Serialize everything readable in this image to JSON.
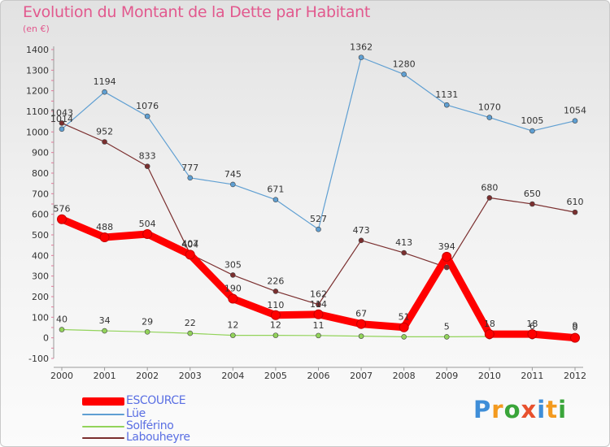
{
  "title": "Evolution du Montant de la Dette par Habitant",
  "unit": "(en €)",
  "logo": {
    "text": "Proxiti",
    "letters": [
      {
        "ch": "P",
        "color": "#3f8ed8"
      },
      {
        "ch": "r",
        "color": "#f39a1f"
      },
      {
        "ch": "o",
        "color": "#3aa53a"
      },
      {
        "ch": "x",
        "color": "#e8512e"
      },
      {
        "ch": "i",
        "color": "#3f8ed8"
      },
      {
        "ch": "t",
        "color": "#f39a1f"
      },
      {
        "ch": "i",
        "color": "#3aa53a"
      }
    ]
  },
  "chart_data": {
    "type": "line",
    "title": "Evolution du Montant de la Dette par Habitant",
    "subtitle": "(en €)",
    "x": [
      "2000",
      "2001",
      "2002",
      "2003",
      "2004",
      "2005",
      "2006",
      "2007",
      "2008",
      "2009",
      "2010",
      "2011",
      "2012"
    ],
    "ylim": [
      -100,
      1400
    ],
    "yticks": [
      -100,
      0,
      100,
      200,
      300,
      400,
      500,
      600,
      700,
      800,
      900,
      1000,
      1100,
      1200,
      1300,
      1400
    ],
    "grid": false,
    "legend_position": "bottom-left",
    "series": [
      {
        "name": "ESCOURCE",
        "color": "#ff0000",
        "values": [
          576,
          488,
          504,
          404,
          190,
          110,
          114,
          67,
          51,
          394,
          18,
          18,
          0
        ],
        "labels": [
          "576",
          "488",
          "504",
          "404",
          "190",
          "110",
          "114",
          "67",
          "51",
          "394",
          "18",
          "18",
          "0"
        ]
      },
      {
        "name": "Lüe",
        "color": "#5f9fd2",
        "values": [
          1014,
          1194,
          1076,
          777,
          745,
          671,
          527,
          1362,
          1280,
          1131,
          1070,
          1005,
          1054
        ],
        "labels": [
          "1014",
          "1194",
          "1076",
          "777",
          "745",
          "671",
          "527",
          "1362",
          "1280",
          "1131",
          "1070",
          "1005",
          "1054"
        ]
      },
      {
        "name": "Solférino",
        "color": "#92d35a",
        "values": [
          40,
          34,
          29,
          22,
          12,
          12,
          11,
          8,
          5,
          5,
          6,
          6,
          9
        ],
        "labels": [
          "40",
          "34",
          "29",
          "22",
          "12",
          "12",
          "11",
          "",
          "",
          "5",
          "",
          "6",
          "9"
        ]
      },
      {
        "name": "Labouheyre",
        "color": "#7b2f2f",
        "values": [
          1043,
          952,
          833,
          407,
          305,
          226,
          162,
          473,
          413,
          342,
          680,
          650,
          610
        ],
        "labels": [
          "1043",
          "952",
          "833",
          "407",
          "305",
          "226",
          "162",
          "473",
          "413",
          "",
          "680",
          "650",
          "610"
        ]
      }
    ]
  }
}
